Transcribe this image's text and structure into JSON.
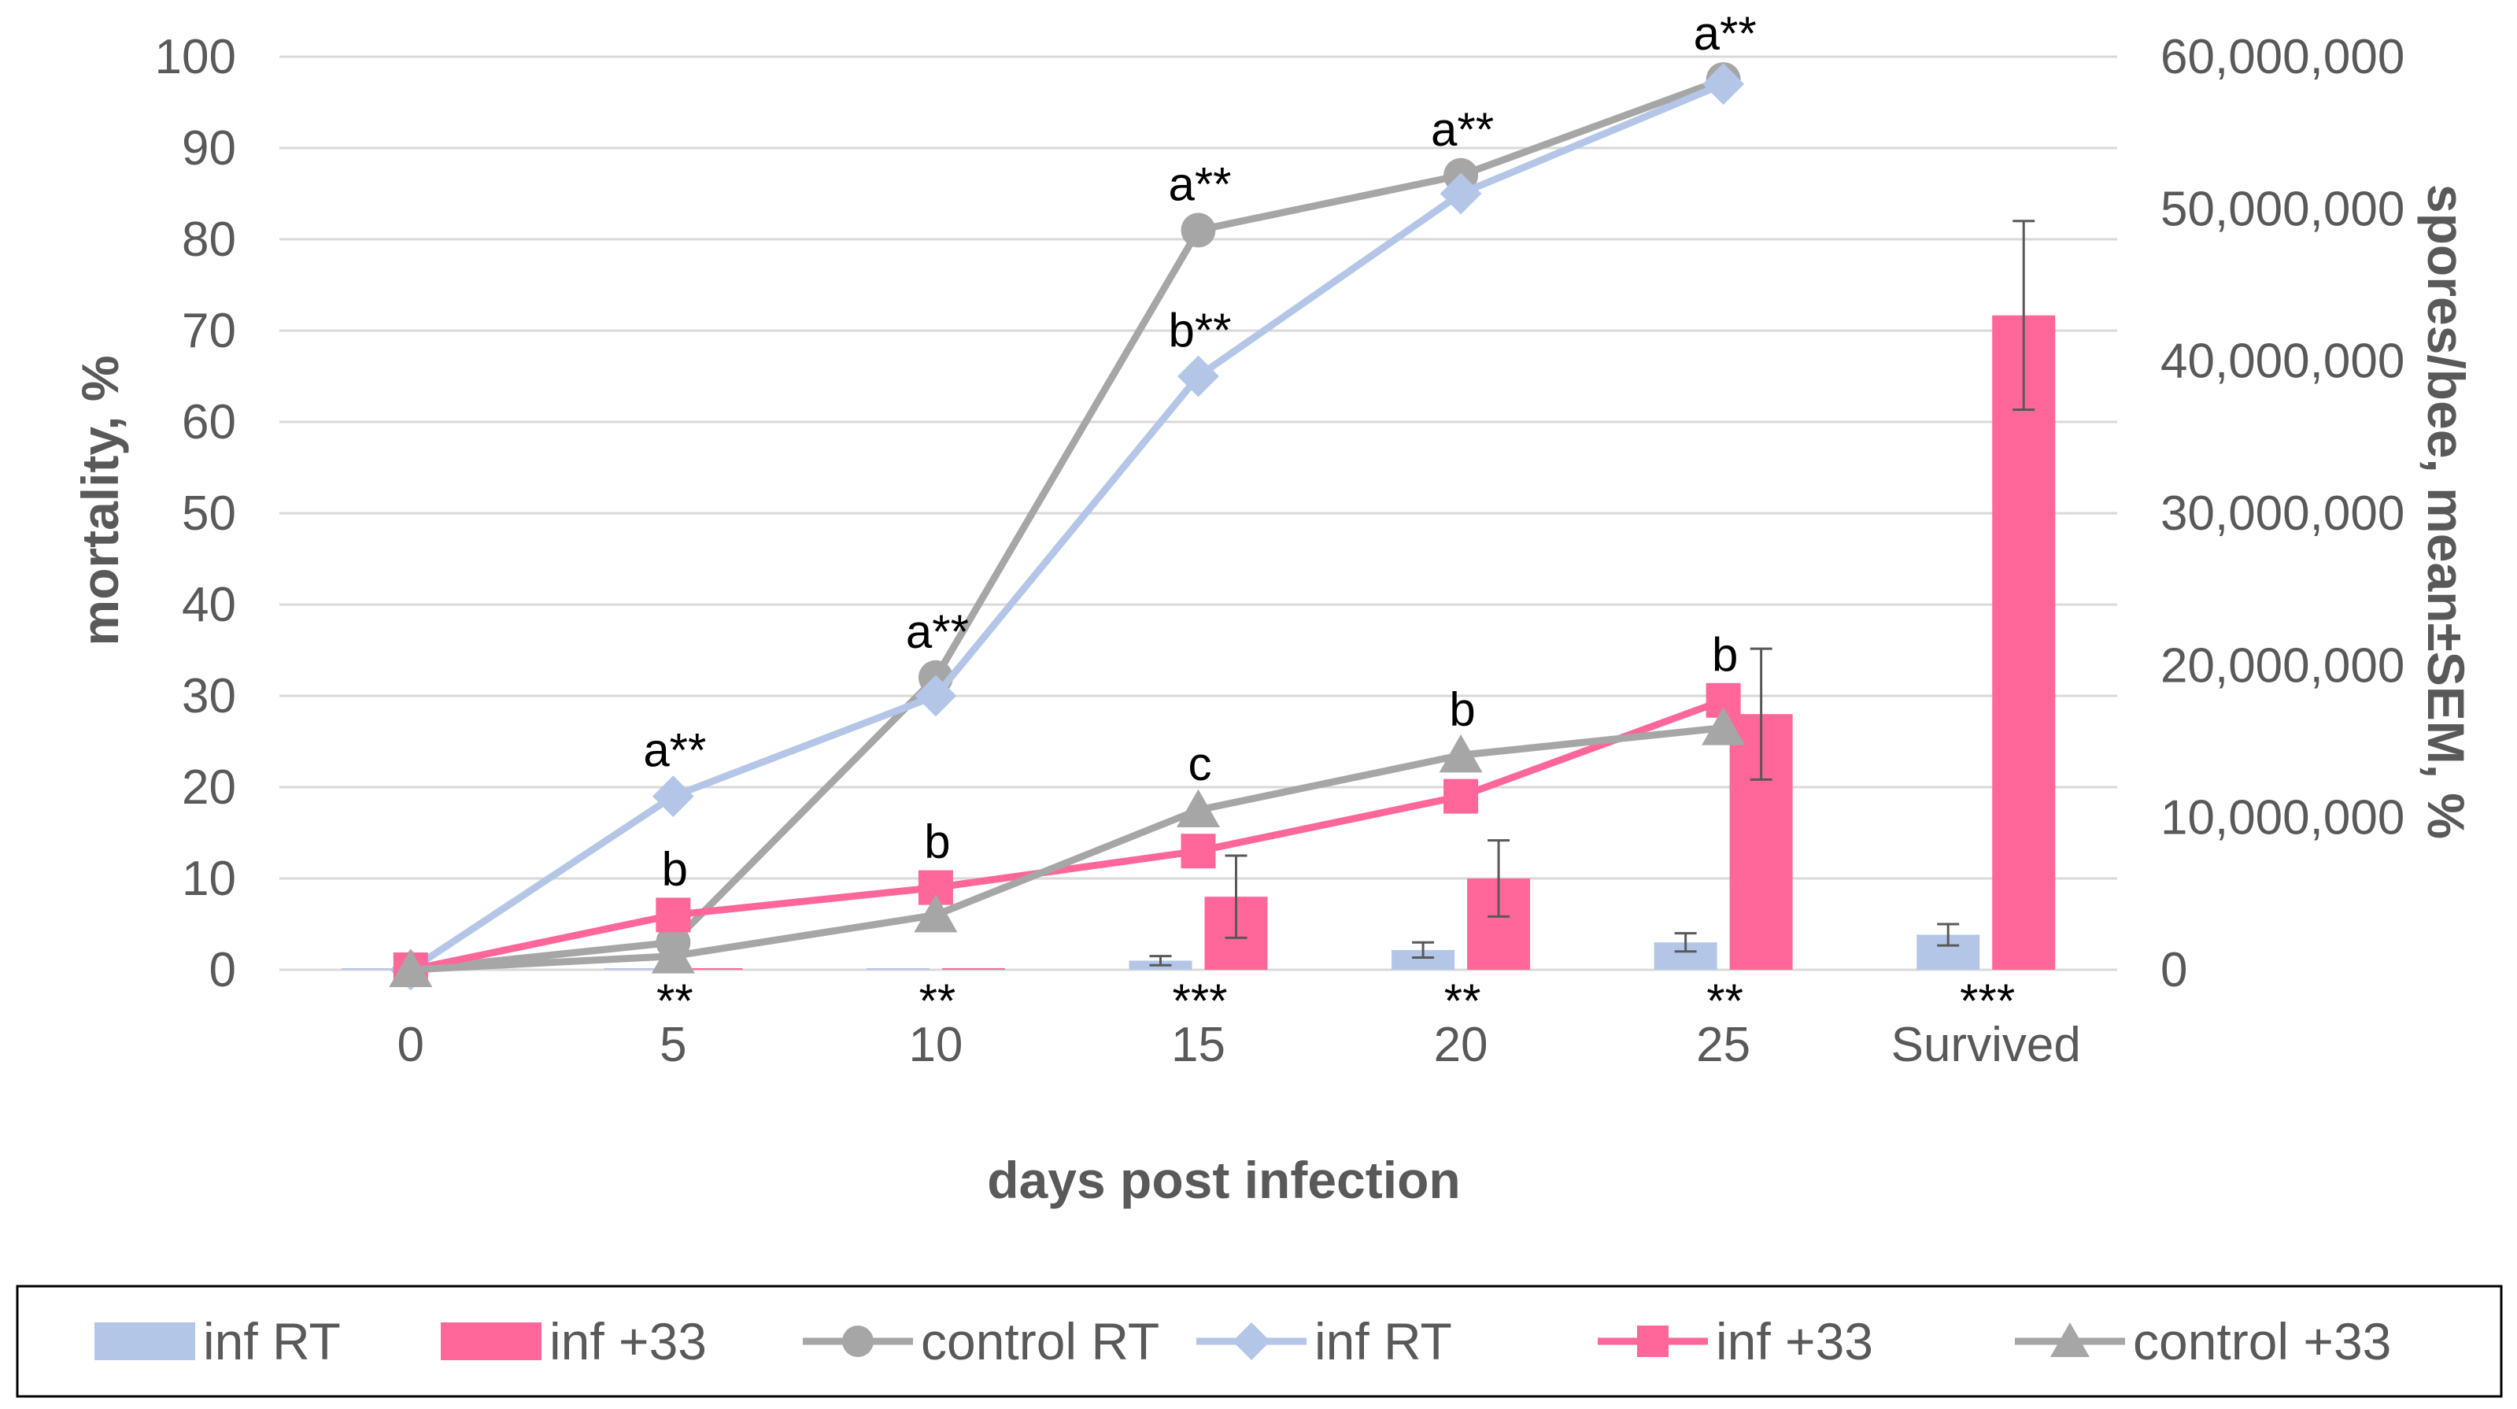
{
  "chart_data": {
    "type": "bar+line",
    "xlabel": "days post infection",
    "ylabel_left": "mortality, %",
    "ylabel_right": "spores/bee, mean±SEM, %",
    "categories": [
      "0",
      "5",
      "10",
      "15",
      "20",
      "25",
      "Survived"
    ],
    "left_axis": {
      "min": 0,
      "max": 100,
      "ticks": [
        "0",
        "10",
        "20",
        "30",
        "40",
        "50",
        "60",
        "70",
        "80",
        "90",
        "100"
      ]
    },
    "right_axis": {
      "min": 0,
      "max": 60000000,
      "ticks": [
        "0",
        "10,000,000",
        "20,000,000",
        "30,000,000",
        "40,000,000",
        "50,000,000",
        "60,000,000"
      ]
    },
    "bar_series": [
      {
        "name": "inf RT",
        "color": "#b4c6e7",
        "values": [
          0,
          0,
          0,
          600000,
          1300000,
          1800000,
          2300000
        ],
        "errors": [
          0,
          0,
          0,
          300000,
          500000,
          600000,
          700000
        ]
      },
      {
        "name": "inf +33",
        "color": "#ff6699",
        "values": [
          0,
          0,
          0,
          4800000,
          6000000,
          16800000,
          43000000
        ],
        "errors": [
          0,
          0,
          0,
          2700000,
          2500000,
          4300000,
          6200000
        ]
      }
    ],
    "line_series": [
      {
        "name": "control RT",
        "color": "#a6a6a6",
        "marker": "circle",
        "values": [
          0,
          3,
          32,
          81,
          87,
          97.5,
          null
        ]
      },
      {
        "name": "inf RT",
        "color": "#b4c6e7",
        "marker": "diamond",
        "values": [
          0,
          19,
          30,
          65,
          85,
          97,
          null
        ]
      },
      {
        "name": "inf +33",
        "color": "#ff6699",
        "marker": "square",
        "values": [
          0,
          6,
          9,
          13,
          19,
          29.5,
          null
        ]
      },
      {
        "name": "control +33",
        "color": "#a6a6a6",
        "marker": "triangle",
        "values": [
          0,
          1.5,
          6,
          17.5,
          23.5,
          26.5,
          null
        ]
      }
    ],
    "annotations": [
      {
        "category": "5",
        "value": 19,
        "text": "a**"
      },
      {
        "category": "5",
        "value": 6,
        "text": "b"
      },
      {
        "category": "10",
        "value": 32,
        "text": "a**"
      },
      {
        "category": "10",
        "value": 9,
        "text": "b"
      },
      {
        "category": "15",
        "value": 81,
        "text": "a**"
      },
      {
        "category": "15",
        "value": 65,
        "text": "b**"
      },
      {
        "category": "15",
        "value": 17.5,
        "text": "c"
      },
      {
        "category": "20",
        "value": 87,
        "text": "a**"
      },
      {
        "category": "20",
        "value": 23.5,
        "text": "b"
      },
      {
        "category": "25",
        "value": 97.5,
        "text": "a**"
      },
      {
        "category": "25",
        "value": 29.5,
        "text": "b"
      }
    ],
    "significance": [
      "",
      "**",
      "**",
      "***",
      "**",
      "**",
      "***"
    ],
    "legend": {
      "position": "bottom",
      "entries": [
        {
          "label": "inf RT",
          "kind": "bar",
          "color": "#b4c6e7"
        },
        {
          "label": "inf +33",
          "kind": "bar",
          "color": "#ff6699"
        },
        {
          "label": "control RT",
          "kind": "line",
          "marker": "circle",
          "color": "#a6a6a6"
        },
        {
          "label": "inf RT",
          "kind": "line",
          "marker": "diamond",
          "color": "#b4c6e7"
        },
        {
          "label": "inf +33",
          "kind": "line",
          "marker": "square",
          "color": "#ff6699"
        },
        {
          "label": "control +33",
          "kind": "line",
          "marker": "triangle",
          "color": "#a6a6a6"
        }
      ]
    },
    "grid": true
  }
}
